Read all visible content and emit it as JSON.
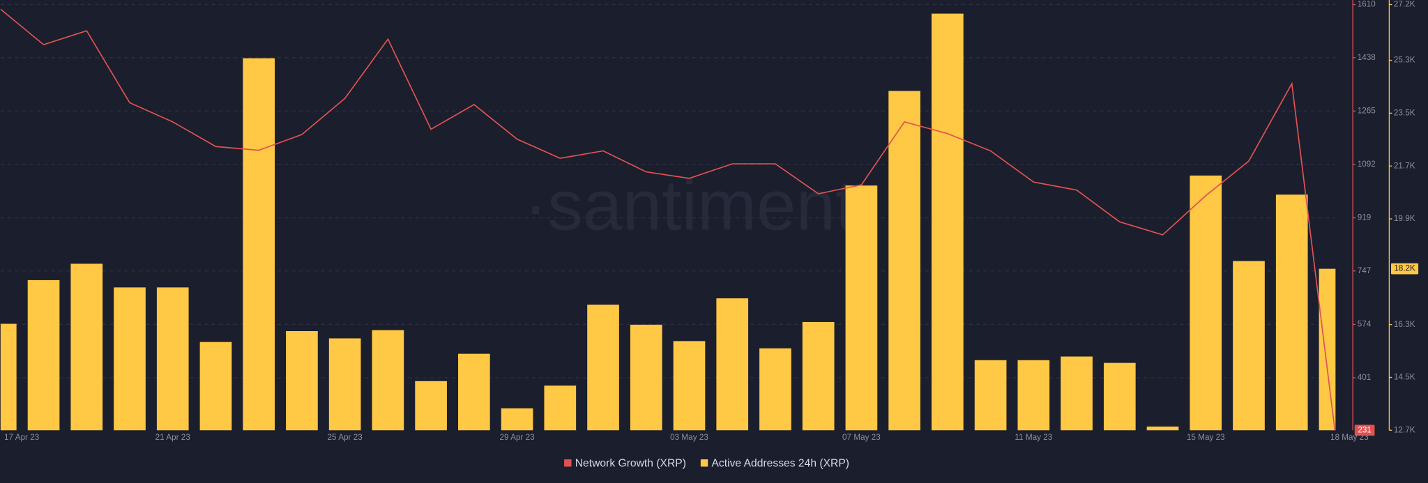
{
  "chart_data": {
    "type": "bar-line",
    "watermark": "·santiment·",
    "categories": [
      "17 Apr 23",
      null,
      null,
      null,
      "21 Apr 23",
      null,
      null,
      null,
      "25 Apr 23",
      null,
      null,
      null,
      "29 Apr 23",
      null,
      null,
      null,
      "03 May 23",
      null,
      null,
      null,
      "07 May 23",
      null,
      null,
      null,
      "11 May 23",
      null,
      null,
      null,
      "15 May 23",
      null,
      null,
      "18 May 23"
    ],
    "series": [
      {
        "name": "Network Growth (XRP)",
        "type": "line",
        "axis": "y",
        "color": "#e05252",
        "values": [
          1595,
          1480,
          1525,
          1292,
          1230,
          1150,
          1138,
          1189,
          1306,
          1498,
          1206,
          1286,
          1174,
          1112,
          1136,
          1068,
          1047,
          1094,
          1094,
          997,
          1026,
          1230,
          1192,
          1136,
          1035,
          1009,
          906,
          864,
          991,
          1103,
          1354,
          231
        ]
      },
      {
        "name": "Active Addresses 24h (XRP)",
        "type": "bar",
        "axis": "y2",
        "color": "#ffc845",
        "values": [
          16326,
          17813,
          18371,
          17565,
          17565,
          15706,
          25372,
          16078,
          15830,
          16109,
          14374,
          15304,
          13445,
          14219,
          16977,
          16295,
          15737,
          17193,
          15490,
          16388,
          21035,
          24257,
          26890,
          15087,
          15087,
          15211,
          14994,
          12825,
          21376,
          18464,
          20725,
          18200
        ],
        "value_labels": [
          null,
          null,
          null,
          null,
          null,
          null,
          null,
          null,
          null,
          null,
          null,
          null,
          null,
          null,
          null,
          null,
          null,
          null,
          null,
          null,
          null,
          null,
          null,
          null,
          null,
          null,
          null,
          null,
          null,
          null,
          null,
          "18.2K"
        ]
      }
    ],
    "ylim": [
      231,
      1610
    ],
    "yticks": [
      1610,
      1438,
      1265,
      1092,
      919,
      747,
      574,
      401
    ],
    "y2lim": [
      12700,
      27200
    ],
    "y2ticks": [
      {
        "value": 27200,
        "label": "27.2K"
      },
      {
        "value": 25300,
        "label": "25.3K"
      },
      {
        "value": 23500,
        "label": "23.5K"
      },
      {
        "value": 21700,
        "label": "21.7K"
      },
      {
        "value": 19900,
        "label": "19.9K"
      },
      {
        "value": 16300,
        "label": "16.3K"
      },
      {
        "value": 14500,
        "label": "14.5K"
      },
      {
        "value": 12700,
        "label": "12.7K"
      }
    ],
    "grid": true,
    "legend": "bottom"
  }
}
